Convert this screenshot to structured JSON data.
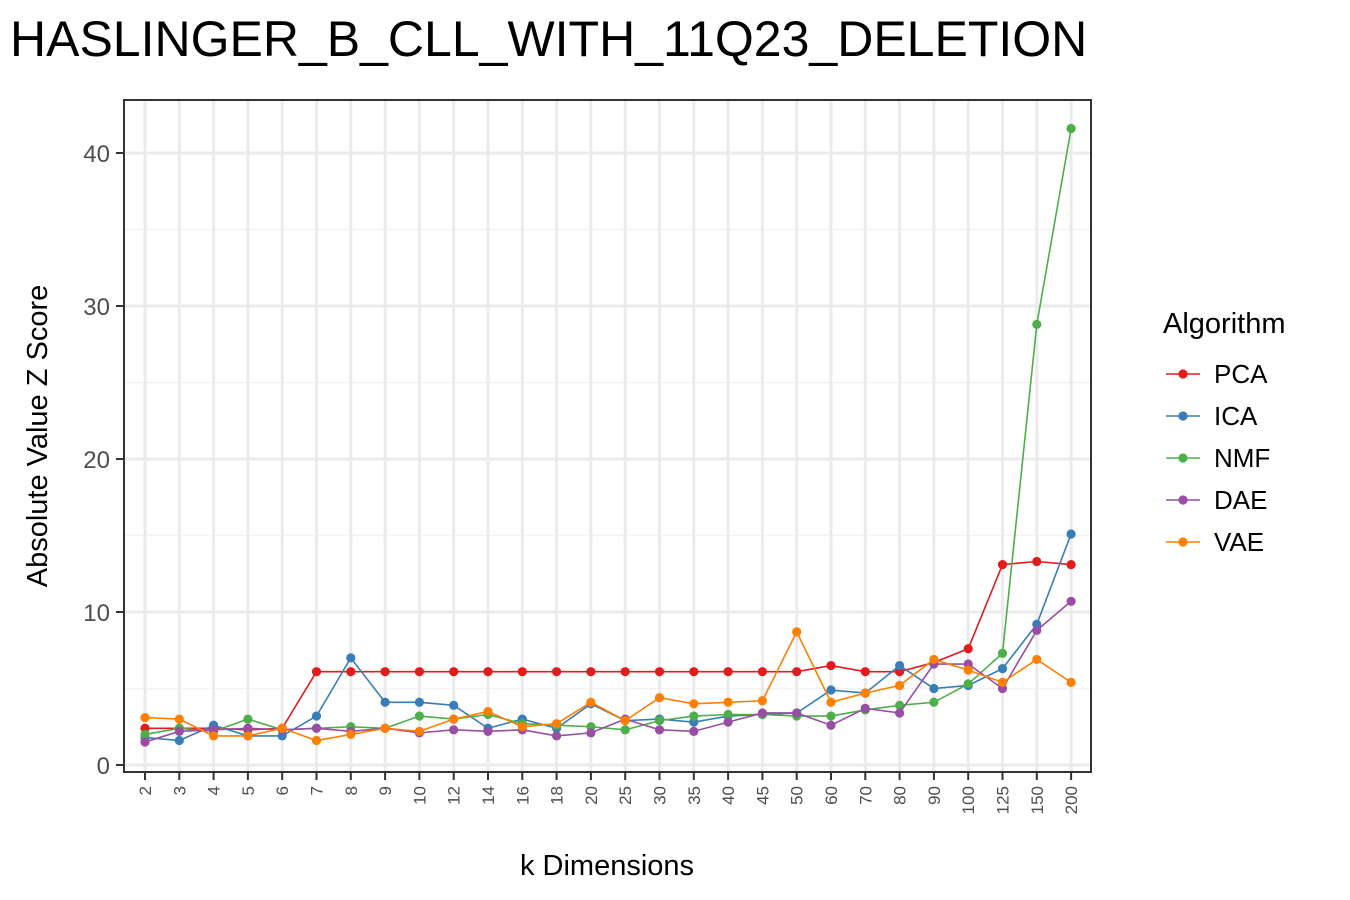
{
  "chart_data": {
    "type": "line",
    "title": "HASLINGER_B_CLL_WITH_11Q23_DELETION",
    "xlabel": "k Dimensions",
    "ylabel": "Absolute Value Z Score",
    "ylim": [
      0,
      42.5
    ],
    "yticks": [
      0,
      10,
      20,
      30,
      40
    ],
    "grid": true,
    "legend_title": "Algorithm",
    "legend_position": "right",
    "categories": [
      "2",
      "3",
      "4",
      "5",
      "6",
      "7",
      "8",
      "9",
      "10",
      "12",
      "14",
      "16",
      "18",
      "20",
      "25",
      "30",
      "35",
      "40",
      "45",
      "50",
      "60",
      "70",
      "80",
      "90",
      "100",
      "125",
      "150",
      "200"
    ],
    "series": [
      {
        "name": "PCA",
        "color": "#E41A1C",
        "values": [
          2.4,
          2.4,
          2.4,
          2.3,
          2.4,
          6.1,
          6.1,
          6.1,
          6.1,
          6.1,
          6.1,
          6.1,
          6.1,
          6.1,
          6.1,
          6.1,
          6.1,
          6.1,
          6.1,
          6.1,
          6.5,
          6.1,
          6.1,
          6.7,
          7.6,
          13.1,
          13.3,
          13.1
        ]
      },
      {
        "name": "ICA",
        "color": "#377EB8",
        "values": [
          1.8,
          1.6,
          2.6,
          1.9,
          1.9,
          3.2,
          7.0,
          4.1,
          4.1,
          3.9,
          2.4,
          3.0,
          2.4,
          4.0,
          2.9,
          3.0,
          2.8,
          3.2,
          3.3,
          3.4,
          4.9,
          4.7,
          6.5,
          5.0,
          5.2,
          6.3,
          9.2,
          15.1
        ]
      },
      {
        "name": "NMF",
        "color": "#4DAF4A",
        "values": [
          2.0,
          2.4,
          2.2,
          3.0,
          2.3,
          2.4,
          2.5,
          2.4,
          3.2,
          3.0,
          3.3,
          2.7,
          2.6,
          2.5,
          2.3,
          2.9,
          3.2,
          3.3,
          3.3,
          3.2,
          3.2,
          3.6,
          3.9,
          4.1,
          5.3,
          7.3,
          28.8,
          41.6
        ]
      },
      {
        "name": "DAE",
        "color": "#984EA3",
        "values": [
          1.5,
          2.2,
          2.3,
          2.4,
          2.3,
          2.4,
          2.2,
          2.4,
          2.1,
          2.3,
          2.2,
          2.3,
          1.9,
          2.1,
          3.0,
          2.3,
          2.2,
          2.8,
          3.4,
          3.4,
          2.6,
          3.7,
          3.4,
          6.6,
          6.6,
          5.0,
          8.8,
          10.7
        ]
      },
      {
        "name": "VAE",
        "color": "#FF7F00",
        "values": [
          3.1,
          3.0,
          1.9,
          1.9,
          2.4,
          1.6,
          2.0,
          2.4,
          2.2,
          3.0,
          3.5,
          2.5,
          2.7,
          4.1,
          2.9,
          4.4,
          4.0,
          4.1,
          4.2,
          8.7,
          4.1,
          4.7,
          5.2,
          6.9,
          6.2,
          5.4,
          6.9,
          5.4
        ]
      }
    ]
  }
}
